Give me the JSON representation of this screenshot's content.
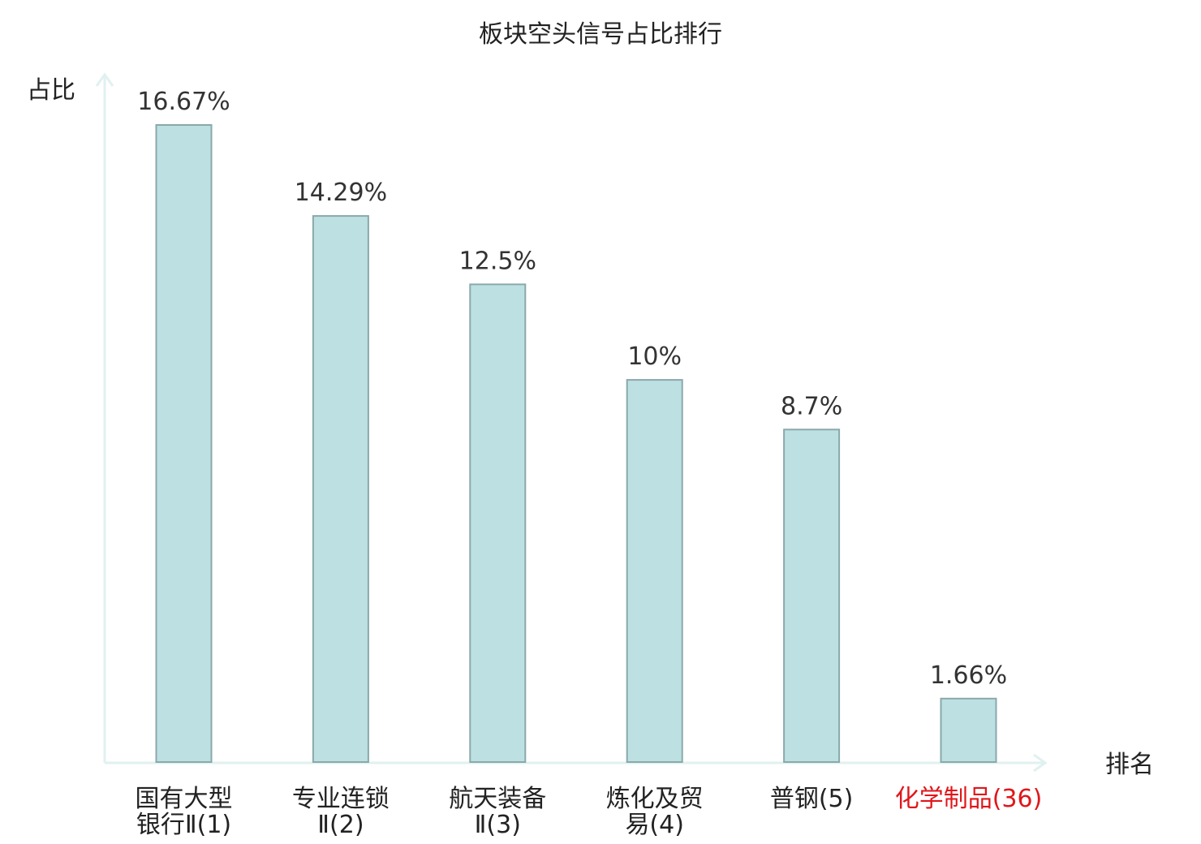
{
  "chart_data": {
    "type": "bar",
    "title": "板块空头信号占比排行",
    "ylabel": "占比",
    "xlabel": "排名",
    "categories": [
      {
        "lines": [
          "国有大型",
          "银行Ⅱ(1)"
        ],
        "highlight": false
      },
      {
        "lines": [
          "专业连锁",
          "Ⅱ(2)"
        ],
        "highlight": false
      },
      {
        "lines": [
          "航天装备",
          "Ⅱ(3)"
        ],
        "highlight": false
      },
      {
        "lines": [
          "炼化及贸",
          "易(4)"
        ],
        "highlight": false
      },
      {
        "lines": [
          "普钢(5)"
        ],
        "highlight": false
      },
      {
        "lines": [
          "化学制品(36)"
        ],
        "highlight": true
      }
    ],
    "values": [
      16.67,
      14.29,
      12.5,
      10,
      8.7,
      1.66
    ],
    "value_labels": [
      "16.67%",
      "14.29%",
      "12.5%",
      "10%",
      "8.7%",
      "1.66%"
    ],
    "ylim": [
      0,
      16.67
    ],
    "grid": false,
    "legend": "none"
  },
  "colors": {
    "bar_fill": "#bde0e3",
    "bar_stroke": "#8aa9aa",
    "axis": "#e0f1ef",
    "text": "#222222",
    "value_text": "#333333",
    "highlight": "#e0161b"
  }
}
